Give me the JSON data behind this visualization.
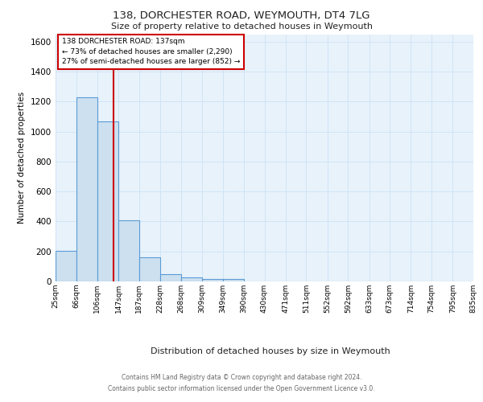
{
  "title1": "138, DORCHESTER ROAD, WEYMOUTH, DT4 7LG",
  "title2": "Size of property relative to detached houses in Weymouth",
  "xlabel": "Distribution of detached houses by size in Weymouth",
  "ylabel": "Number of detached properties",
  "bin_edges": [
    25,
    66,
    106,
    147,
    187,
    228,
    268,
    309,
    349,
    390,
    430,
    471,
    511,
    552,
    592,
    633,
    673,
    714,
    754,
    795,
    835
  ],
  "bin_labels": [
    "25sqm",
    "66sqm",
    "106sqm",
    "147sqm",
    "187sqm",
    "228sqm",
    "268sqm",
    "309sqm",
    "349sqm",
    "390sqm",
    "430sqm",
    "471sqm",
    "511sqm",
    "552sqm",
    "592sqm",
    "633sqm",
    "673sqm",
    "714sqm",
    "754sqm",
    "795sqm",
    "835sqm"
  ],
  "heights": [
    205,
    1230,
    1070,
    410,
    160,
    50,
    25,
    15,
    15,
    0,
    0,
    0,
    0,
    0,
    0,
    0,
    0,
    0,
    0,
    0
  ],
  "bar_facecolor": "#cce0f0",
  "bar_edgecolor": "#5b9bd5",
  "grid_color": "#d0e4f5",
  "background_color": "#e8f2fb",
  "vline_x": 137,
  "vline_color": "#cc0000",
  "annotation_text": "138 DORCHESTER ROAD: 137sqm\n← 73% of detached houses are smaller (2,290)\n27% of semi-detached houses are larger (852) →",
  "annotation_box_color": "#cc0000",
  "ylim": [
    0,
    1650
  ],
  "yticks": [
    0,
    200,
    400,
    600,
    800,
    1000,
    1200,
    1400,
    1600
  ],
  "footer1": "Contains HM Land Registry data © Crown copyright and database right 2024.",
  "footer2": "Contains public sector information licensed under the Open Government Licence v3.0."
}
